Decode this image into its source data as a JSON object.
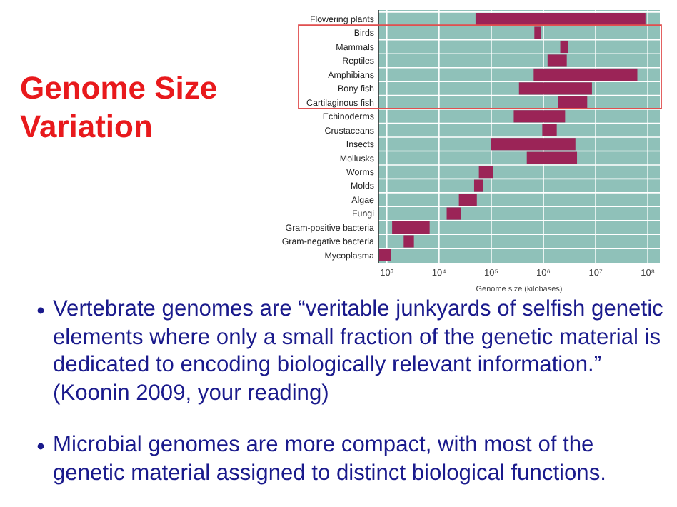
{
  "chart_data": {
    "type": "bar",
    "orientation": "horizontal",
    "title": "Genome Size Variation",
    "xlabel": "Genome size (kilobases)",
    "categories": [
      "Flowering plants",
      "Birds",
      "Mammals",
      "Reptiles",
      "Amphibians",
      "Bony fish",
      "Cartilaginous fish",
      "Echinoderms",
      "Crustaceans",
      "Insects",
      "Mollusks",
      "Worms",
      "Molds",
      "Algae",
      "Fungi",
      "Gram-positive bacteria",
      "Gram-negative bacteria",
      "Mycoplasma"
    ],
    "base": [
      50000,
      670000,
      2100000,
      1200000,
      650000,
      340000,
      1900000,
      270000,
      950000,
      100000,
      480000,
      58000,
      47000,
      24000,
      14000,
      1260,
      2100,
      710
    ],
    "values": [
      89950000,
      220000,
      900000,
      1600000,
      62350000,
      8160000,
      5000000,
      2330000,
      850000,
      4000000,
      3920000,
      52000,
      22000,
      29000,
      12000,
      5340,
      1200,
      490
    ],
    "color": "#9b2457",
    "log": "x",
    "xlim": [
      690,
      170000000
    ],
    "xticks": [
      {
        "value": 1000,
        "label": "10³"
      },
      {
        "value": 10000,
        "label": "10⁴"
      },
      {
        "value": 100000,
        "label": "10⁵"
      },
      {
        "value": 1000000,
        "label": "10⁶"
      },
      {
        "value": 10000000,
        "label": "10⁷"
      },
      {
        "value": 100000000,
        "label": "10⁸"
      }
    ],
    "grid": "x",
    "annotations": [
      "Vertebrate genomes are “veritable junkyards of selfish genetic elements where only a small fraction of the genetic material is dedicated to encoding biologically relevant information.” (Koonin 2009, your reading)",
      "Microbial genomes are more compact, with most of the genetic material assigned to distinct biological functions."
    ]
  }
}
